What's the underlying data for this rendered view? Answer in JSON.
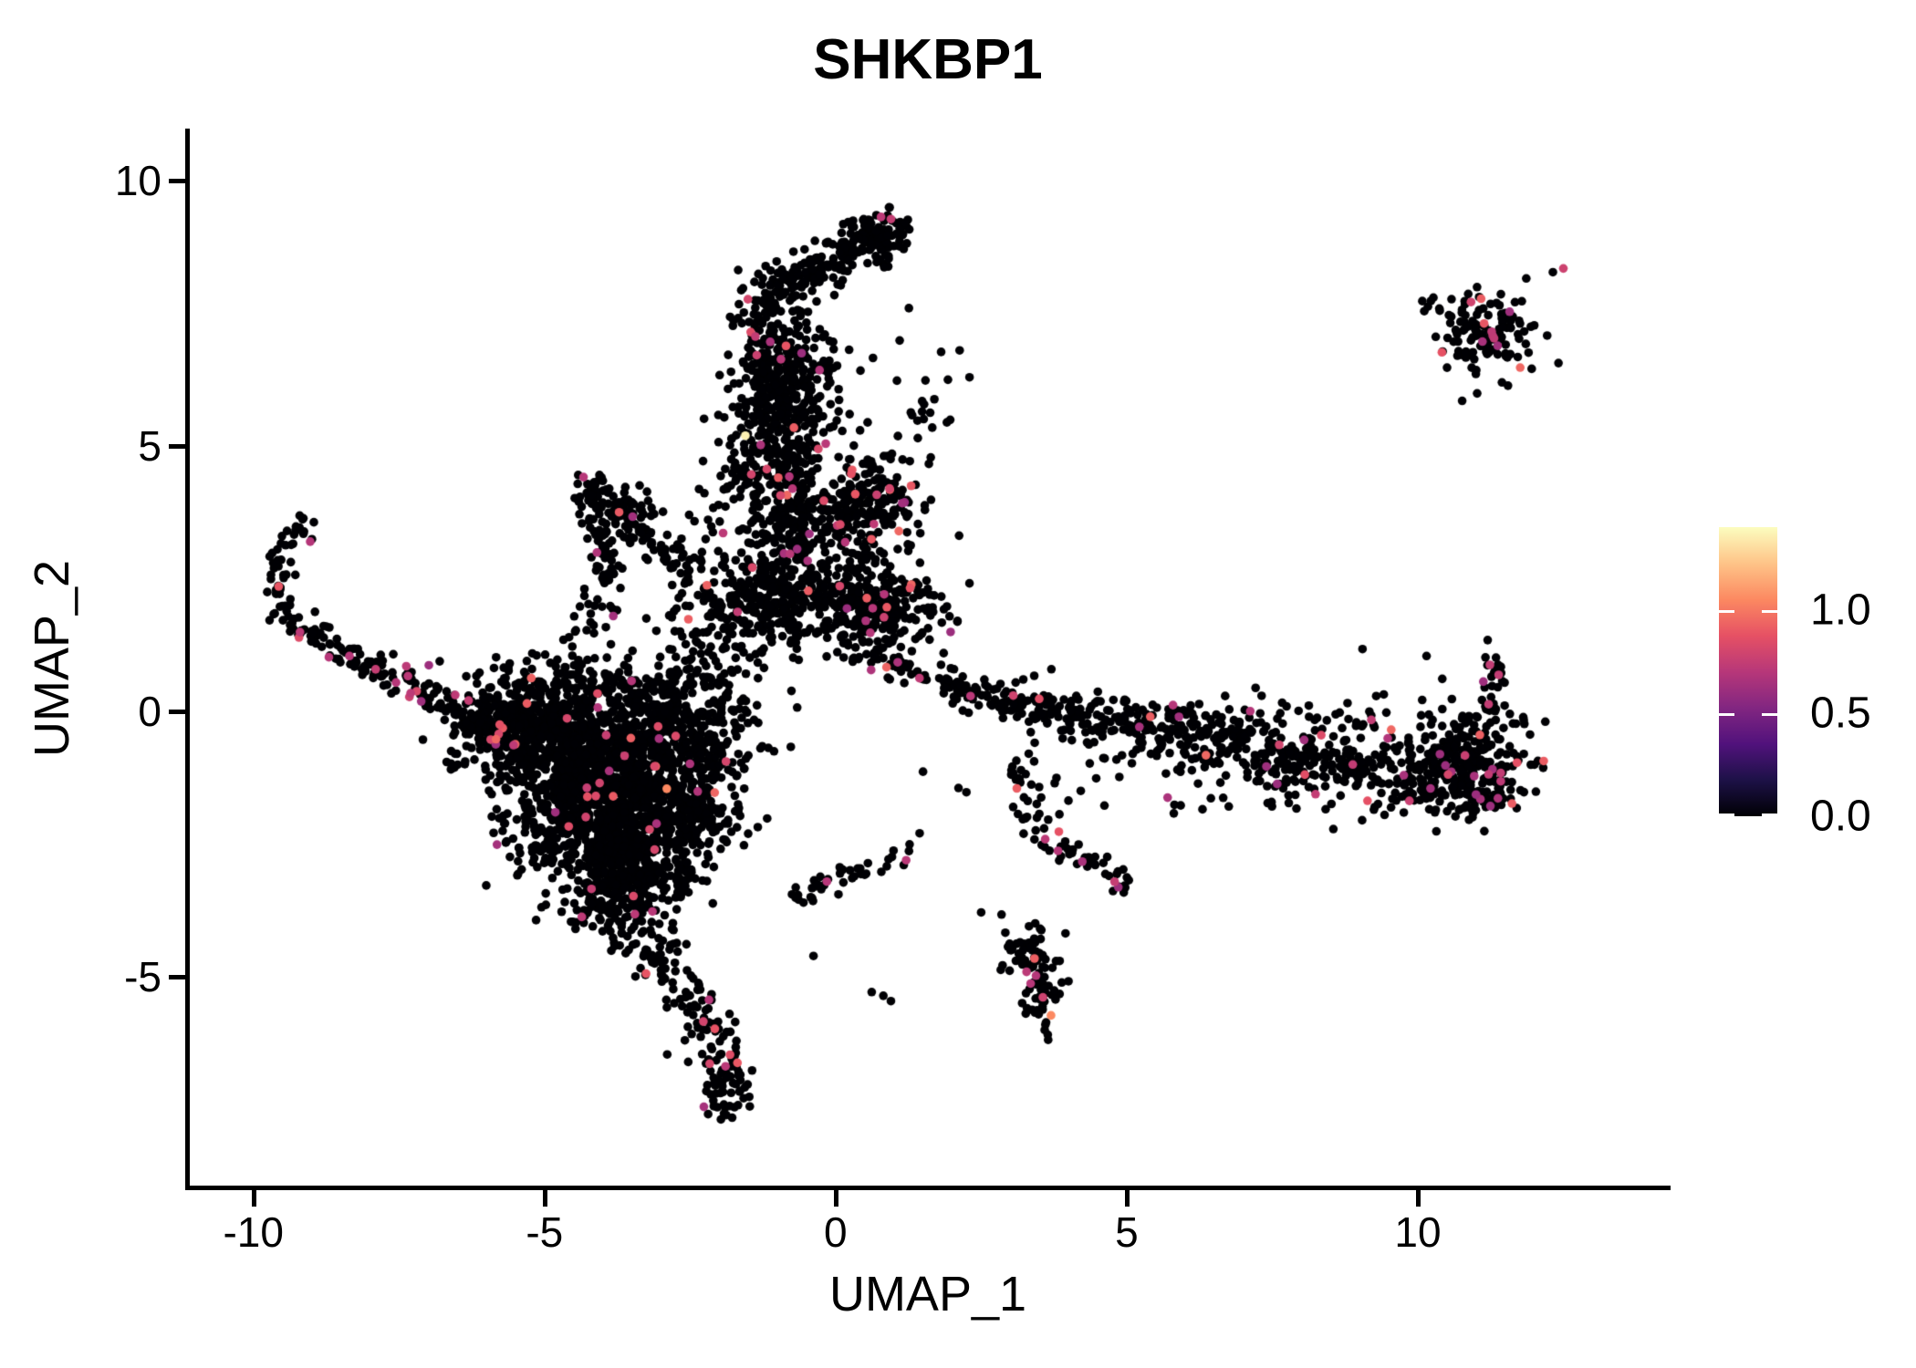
{
  "chart_data": {
    "type": "scatter",
    "title": "SHKBP1",
    "xlabel": "UMAP_1",
    "ylabel": "UMAP_2",
    "xlim": [
      -11.14,
      14.31
    ],
    "ylim": [
      -8.96,
      10.95
    ],
    "x_ticks": [
      "-10",
      "-5",
      "0",
      "5",
      "10"
    ],
    "x_tick_values": [
      -10,
      -5,
      0,
      5,
      10
    ],
    "y_ticks": [
      "-5",
      "0",
      "5",
      "10"
    ],
    "y_tick_values": [
      -5,
      0,
      5,
      10
    ],
    "grid": false,
    "legend_position": "right",
    "legend": {
      "tick_labels": [
        "0.0",
        "0.5",
        "1.0"
      ],
      "tick_values": [
        0.0,
        0.5,
        1.0
      ],
      "min": 0.0,
      "max": 1.4
    },
    "point_radius": 4.8,
    "seed": 42,
    "colormap_name": "magma",
    "colormap": [
      [
        0.0,
        "#000004"
      ],
      [
        0.125,
        "#1d1147"
      ],
      [
        0.25,
        "#51127c"
      ],
      [
        0.375,
        "#822681"
      ],
      [
        0.5,
        "#b73779"
      ],
      [
        0.625,
        "#e65164"
      ],
      [
        0.75,
        "#fc8961"
      ],
      [
        0.875,
        "#fec488"
      ],
      [
        1.0,
        "#fcfdbf"
      ]
    ],
    "clusters": [
      {
        "name": "left-arm-hook",
        "type": "strand",
        "path": [
          [
            -9.1,
            3.5
          ],
          [
            -9.5,
            3.2
          ],
          [
            -9.7,
            2.6
          ],
          [
            -9.55,
            2.0
          ],
          [
            -9.2,
            1.6
          ],
          [
            -8.7,
            1.25
          ],
          [
            -8.1,
            0.95
          ],
          [
            -7.5,
            0.6
          ],
          [
            -6.95,
            0.25
          ],
          [
            -6.45,
            -0.05
          ]
        ],
        "jitter": 0.14,
        "n": 175,
        "pos_frac": 0.05
      },
      {
        "name": "blob-core-1",
        "type": "gauss",
        "cx": -4.9,
        "cy": -0.55,
        "sx": 0.75,
        "sy": 0.6,
        "n": 550,
        "pos_frac": 0.02
      },
      {
        "name": "blob-core-2",
        "type": "gauss",
        "cx": -3.7,
        "cy": -1.1,
        "sx": 0.75,
        "sy": 0.65,
        "n": 550,
        "pos_frac": 0.02
      },
      {
        "name": "blob-core-3",
        "type": "gauss",
        "cx": -4.3,
        "cy": -2.1,
        "sx": 0.65,
        "sy": 0.6,
        "n": 450,
        "pos_frac": 0.015
      },
      {
        "name": "blob-core-4",
        "type": "gauss",
        "cx": -3.4,
        "cy": -2.7,
        "sx": 0.55,
        "sy": 0.55,
        "n": 300,
        "pos_frac": 0.02
      },
      {
        "name": "blob-left-tip",
        "type": "gauss",
        "cx": -5.75,
        "cy": -0.2,
        "sx": 0.45,
        "sy": 0.38,
        "n": 150,
        "pos_frac": 0.02
      },
      {
        "name": "blob-top-right",
        "type": "gauss",
        "cx": -2.9,
        "cy": -0.15,
        "sx": 0.6,
        "sy": 0.5,
        "n": 220,
        "pos_frac": 0.02
      },
      {
        "name": "blob-taper",
        "type": "gauss",
        "cx": -3.75,
        "cy": -3.55,
        "sx": 0.38,
        "sy": 0.45,
        "n": 130,
        "pos_frac": 0.02
      },
      {
        "name": "blob-right",
        "type": "gauss",
        "cx": -2.55,
        "cy": -1.8,
        "sx": 0.5,
        "sy": 0.6,
        "n": 200,
        "pos_frac": 0.02
      },
      {
        "name": "blob-top-fringe",
        "type": "gauss",
        "cx": -4.1,
        "cy": 0.45,
        "sx": 1.15,
        "sy": 0.3,
        "n": 120,
        "pos_frac": 0.02
      },
      {
        "name": "blob-bridge-right",
        "type": "gauss",
        "cx": -1.95,
        "cy": -0.5,
        "sx": 0.5,
        "sy": 0.8,
        "n": 90,
        "pos_frac": 0.01
      },
      {
        "name": "bottom-tail",
        "type": "strand",
        "path": [
          [
            -3.35,
            -4.25
          ],
          [
            -2.95,
            -4.8
          ],
          [
            -2.5,
            -5.3
          ],
          [
            -2.2,
            -5.9
          ],
          [
            -1.95,
            -6.5
          ],
          [
            -1.8,
            -7.05
          ],
          [
            -1.95,
            -7.45
          ]
        ],
        "jitter": 0.23,
        "n": 165,
        "pos_frac": 0.035
      },
      {
        "name": "v-arm-right",
        "type": "strand",
        "path": [
          [
            -4.35,
            4.4
          ],
          [
            -3.9,
            4.05
          ],
          [
            -3.5,
            3.65
          ],
          [
            -3.15,
            3.3
          ],
          [
            -2.85,
            3.0
          ],
          [
            -2.6,
            2.7
          ]
        ],
        "jitter": 0.16,
        "n": 95,
        "pos_frac": 0.03
      },
      {
        "name": "v-arm-left",
        "type": "strand",
        "path": [
          [
            -4.3,
            4.3
          ],
          [
            -4.15,
            3.7
          ],
          [
            -4.0,
            3.1
          ],
          [
            -3.95,
            2.55
          ],
          [
            -4.05,
            2.0
          ]
        ],
        "jitter": 0.14,
        "n": 70,
        "pos_frac": 0.015
      },
      {
        "name": "v-tail",
        "type": "strand",
        "path": [
          [
            -4.25,
            1.8
          ],
          [
            -4.45,
            1.35
          ],
          [
            -4.4,
            0.95
          ]
        ],
        "jitter": 0.12,
        "n": 16,
        "pos_frac": 0
      },
      {
        "name": "v-inner",
        "type": "gauss",
        "cx": -3.6,
        "cy": 3.55,
        "sx": 0.3,
        "sy": 0.3,
        "n": 40,
        "pos_frac": 0.02
      },
      {
        "name": "top-blob",
        "type": "gauss",
        "cx": 0.77,
        "cy": 9.0,
        "sx": 0.27,
        "sy": 0.23,
        "n": 70,
        "pos_frac": 0
      },
      {
        "name": "top-arm",
        "type": "strand",
        "path": [
          [
            -1.35,
            7.5
          ],
          [
            -0.9,
            7.95
          ],
          [
            -0.45,
            8.3
          ],
          [
            0.0,
            8.55
          ],
          [
            0.4,
            8.8
          ],
          [
            0.65,
            8.95
          ]
        ],
        "jitter": 0.22,
        "n": 200,
        "pos_frac": 0.01
      },
      {
        "name": "column-upper",
        "type": "gauss",
        "cx": -1.05,
        "cy": 6.45,
        "sx": 0.38,
        "sy": 0.75,
        "n": 280,
        "pos_frac": 0.02
      },
      {
        "name": "column-right-sparse",
        "type": "gauss",
        "cx": -0.3,
        "cy": 6.3,
        "sx": 0.3,
        "sy": 0.6,
        "n": 55,
        "pos_frac": 0.02
      },
      {
        "name": "column-mid",
        "type": "gauss",
        "cx": -1.0,
        "cy": 4.9,
        "sx": 0.45,
        "sy": 0.55,
        "n": 200,
        "pos_frac": 0.02
      },
      {
        "name": "central-body",
        "type": "gauss",
        "cx": -0.55,
        "cy": 3.4,
        "sx": 0.8,
        "sy": 0.7,
        "n": 380,
        "pos_frac": 0.02
      },
      {
        "name": "central-right-blob",
        "type": "gauss",
        "cx": 0.65,
        "cy": 3.95,
        "sx": 0.38,
        "sy": 0.33,
        "n": 130,
        "pos_frac": 0.06
      },
      {
        "name": "central-lower-blob",
        "type": "gauss",
        "cx": 0.6,
        "cy": 1.9,
        "sx": 0.55,
        "sy": 0.4,
        "n": 280,
        "pos_frac": 0.03
      },
      {
        "name": "central-stripe",
        "type": "gauss",
        "cx": -1.2,
        "cy": 2.1,
        "sx": 0.7,
        "sy": 0.45,
        "n": 220,
        "pos_frac": 0.015
      },
      {
        "name": "central-left-bridge",
        "type": "gauss",
        "cx": -2.0,
        "cy": 1.45,
        "sx": 0.6,
        "sy": 0.6,
        "n": 90,
        "pos_frac": 0.01
      },
      {
        "name": "column-right-fringe",
        "type": "gauss",
        "cx": 1.45,
        "cy": 5.6,
        "sx": 0.4,
        "sy": 1.1,
        "n": 30,
        "pos_frac": 0
      },
      {
        "name": "central-lower-trail",
        "type": "strand",
        "path": [
          [
            0.6,
            1.2
          ],
          [
            1.1,
            0.9
          ],
          [
            1.6,
            0.62
          ]
        ],
        "jitter": 0.15,
        "n": 35,
        "pos_frac": 0.03
      },
      {
        "name": "band-left",
        "type": "strand",
        "path": [
          [
            1.75,
            0.55
          ],
          [
            2.25,
            0.4
          ],
          [
            2.75,
            0.25
          ],
          [
            3.2,
            0.1
          ]
        ],
        "jitter": 0.17,
        "n": 75,
        "pos_frac": 0.06
      },
      {
        "name": "band-mid",
        "type": "strand",
        "path": [
          [
            3.2,
            0.08
          ],
          [
            3.9,
            -0.05
          ],
          [
            4.6,
            -0.18
          ],
          [
            5.3,
            -0.3
          ],
          [
            6.0,
            -0.45
          ]
        ],
        "jitter": 0.26,
        "n": 180,
        "pos_frac": 0.03
      },
      {
        "name": "band-right",
        "type": "strand",
        "path": [
          [
            6.0,
            -0.5
          ],
          [
            6.8,
            -0.65
          ],
          [
            7.6,
            -0.8
          ],
          [
            8.4,
            -0.95
          ],
          [
            9.2,
            -1.12
          ],
          [
            10.0,
            -1.28
          ],
          [
            10.7,
            -1.38
          ],
          [
            11.3,
            -1.28
          ]
        ],
        "jitter": 0.36,
        "n": 480,
        "pos_frac": 0.055
      },
      {
        "name": "band-right-tip",
        "type": "gauss",
        "cx": 10.9,
        "cy": -0.85,
        "sx": 0.55,
        "sy": 0.48,
        "n": 180,
        "pos_frac": 0.07
      },
      {
        "name": "band-upstrand",
        "type": "strand",
        "path": [
          [
            11.25,
            -0.05
          ],
          [
            11.3,
            0.4
          ],
          [
            11.35,
            0.85
          ],
          [
            11.28,
            1.1
          ]
        ],
        "jitter": 0.1,
        "n": 28,
        "pos_frac": 0.18
      },
      {
        "name": "band-above-sparse",
        "type": "gauss",
        "cx": 8.3,
        "cy": -0.3,
        "sx": 1.6,
        "sy": 0.33,
        "n": 55,
        "pos_frac": 0.05
      },
      {
        "name": "band-below-sparse",
        "type": "gauss",
        "cx": 5.6,
        "cy": -1.25,
        "sx": 1.5,
        "sy": 0.38,
        "n": 45,
        "pos_frac": 0.02
      },
      {
        "name": "down-arm",
        "type": "strand",
        "path": [
          [
            3.0,
            -0.9
          ],
          [
            3.15,
            -1.4
          ],
          [
            3.35,
            -1.9
          ],
          [
            3.62,
            -2.35
          ],
          [
            3.95,
            -2.62
          ],
          [
            4.3,
            -2.82
          ],
          [
            4.65,
            -3.02
          ],
          [
            4.92,
            -3.2
          ]
        ],
        "jitter": 0.13,
        "n": 55,
        "pos_frac": 0.07
      },
      {
        "name": "down-arm-endclump",
        "type": "gauss",
        "cx": 4.95,
        "cy": -3.25,
        "sx": 0.13,
        "sy": 0.13,
        "n": 10,
        "pos_frac": 0.25
      },
      {
        "name": "mid-chain",
        "type": "strand",
        "path": [
          [
            -0.9,
            -3.55
          ],
          [
            -0.5,
            -3.4
          ],
          [
            -0.1,
            -3.22
          ],
          [
            0.3,
            -3.02
          ],
          [
            0.7,
            -2.86
          ],
          [
            1.1,
            -2.72
          ],
          [
            1.45,
            -2.6
          ]
        ],
        "jitter": 0.13,
        "n": 42,
        "pos_frac": 0.03
      },
      {
        "name": "small-vertical-upper",
        "type": "gauss",
        "cx": 3.28,
        "cy": -4.55,
        "sx": 0.2,
        "sy": 0.33,
        "n": 55,
        "pos_frac": 0.03
      },
      {
        "name": "small-vertical-lower",
        "type": "gauss",
        "cx": 3.55,
        "cy": -5.35,
        "sx": 0.18,
        "sy": 0.33,
        "n": 45,
        "pos_frac": 0.04
      },
      {
        "name": "top-right-cluster",
        "type": "gauss",
        "cx": 11.15,
        "cy": 7.1,
        "sx": 0.42,
        "sy": 0.4,
        "n": 130,
        "pos_frac": 0.09
      },
      {
        "name": "top-right-line",
        "type": "strand",
        "path": [
          [
            9.95,
            7.72
          ],
          [
            10.45,
            7.62
          ]
        ],
        "jitter": 0.06,
        "n": 7,
        "pos_frac": 0.15
      }
    ],
    "singles": [
      [
        -6.8,
        0.95
      ],
      [
        0.55,
        5.45
      ],
      [
        0.42,
        5.3
      ],
      [
        2.3,
        6.3
      ],
      [
        1.15,
        4.75
      ],
      [
        9.05,
        1.18
      ],
      [
        10.15,
        1.05
      ],
      [
        10.42,
        0.62
      ],
      [
        11.2,
        1.35
      ],
      [
        2.5,
        -3.78
      ],
      [
        2.85,
        -3.82
      ],
      [
        0.62,
        -5.28
      ],
      [
        0.82,
        -5.35
      ],
      [
        0.95,
        -5.45
      ],
      [
        -0.38,
        -4.6
      ]
    ],
    "specials": [
      {
        "x": -1.55,
        "y": 5.2,
        "v": 1.36
      },
      {
        "x": -2.9,
        "y": -1.45,
        "v": 1.05
      },
      {
        "x": 3.7,
        "y": -5.72,
        "v": 1.05
      },
      {
        "x": 12.32,
        "y": 8.28,
        "v": 0
      },
      {
        "x": 12.5,
        "y": 8.35,
        "v": 0.78
      },
      {
        "x": -9.2,
        "y": 1.5,
        "v": 0.72
      },
      {
        "x": -8.35,
        "y": 1.05,
        "v": 0.7
      },
      {
        "x": -7.9,
        "y": 0.8,
        "v": 0.75
      },
      {
        "x": -7.55,
        "y": 0.55,
        "v": 0.7
      },
      {
        "x": -7.3,
        "y": 0.35,
        "v": 0.72
      },
      {
        "x": 0.78,
        "y": 9.32,
        "v": 0.72
      },
      {
        "x": 0.95,
        "y": 9.28,
        "v": 0.75
      },
      {
        "x": -4.33,
        "y": 4.42,
        "v": 0.7
      },
      {
        "x": -4.1,
        "y": 3.0,
        "v": 0.68
      },
      {
        "x": 3.6,
        "y": -2.4,
        "v": 0.72
      },
      {
        "x": 3.82,
        "y": -2.62,
        "v": 0.7
      },
      {
        "x": 3.28,
        "y": -4.9,
        "v": 0.72
      },
      {
        "x": 3.35,
        "y": -5.12,
        "v": 0.7
      },
      {
        "x": -0.15,
        "y": -3.2,
        "v": 0.7
      }
    ],
    "point_colors": {
      "zero_expression": "#000004",
      "mid_expression": "#b73779",
      "high_expression": "#fc8961",
      "max_expression": "#fcfdbf"
    }
  }
}
